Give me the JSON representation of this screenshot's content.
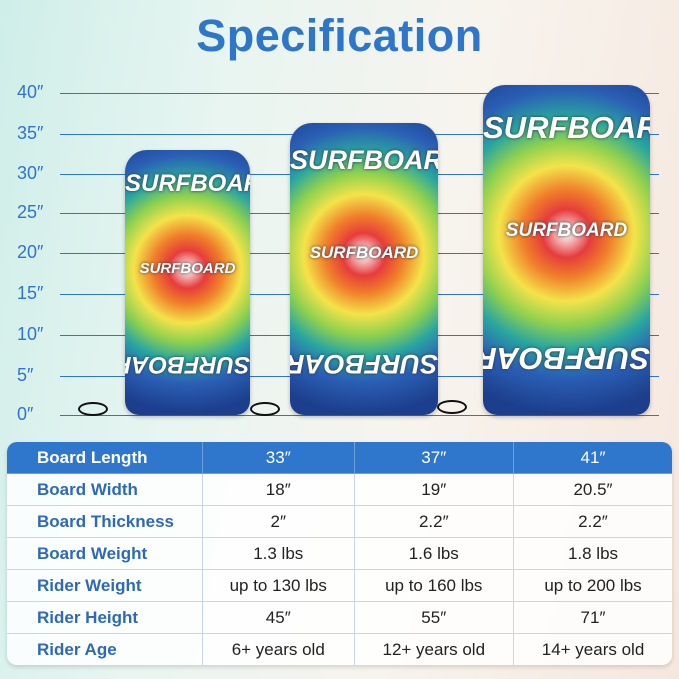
{
  "title": "Specification",
  "ruler": {
    "unit_marks": [
      "40″",
      "35″",
      "30″",
      "25″",
      "20″",
      "15″",
      "10″",
      "5″",
      "0″"
    ],
    "values": [
      40,
      35,
      30,
      25,
      20,
      15,
      10,
      5,
      0
    ]
  },
  "boards": [
    {
      "length_in": 33,
      "graphic_text": "SURFBOARD"
    },
    {
      "length_in": 37,
      "graphic_text": "SURFBOARD"
    },
    {
      "length_in": 41,
      "graphic_text": "SURFBOARD"
    }
  ],
  "table": {
    "header": [
      "Board Length",
      "33″",
      "37″",
      "41″"
    ],
    "rows": [
      [
        "Board Width",
        "18″",
        "19″",
        "20.5″"
      ],
      [
        "Board Thickness",
        "2″",
        "2.2″",
        "2.2″"
      ],
      [
        "Board Weight",
        "1.3 lbs",
        "1.6 lbs",
        "1.8 lbs"
      ],
      [
        "Rider Weight",
        "up to 130 lbs",
        "up to 160 lbs",
        "up to 200 lbs"
      ],
      [
        "Rider Height",
        "45″",
        "55″",
        "71″"
      ],
      [
        "Rider Age",
        "6+ years old",
        "12+ years old",
        "14+ years old"
      ]
    ]
  },
  "colors": {
    "accent": "#2e76c9",
    "header_bg": "#2f77cc"
  }
}
